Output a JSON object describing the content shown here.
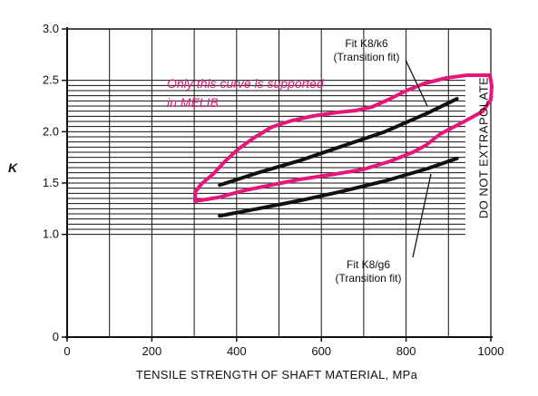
{
  "chart_data": {
    "type": "line",
    "xlabel": "TENSILE STRENGTH OF SHAFT MATERIAL, MPa",
    "ylabel": "K",
    "xlim": [
      0,
      1000
    ],
    "ylim": [
      0,
      3.0
    ],
    "x_ticks": [
      "0",
      "200",
      "400",
      "600",
      "800",
      "1000"
    ],
    "y_ticks": [
      "0",
      "1.0",
      "1.5",
      "2.0",
      "2.5",
      "3.0"
    ],
    "series": [
      {
        "name": "Fit K8/k6 (Transition fit)",
        "x": [
          360,
          450,
          550,
          650,
          750,
          850,
          920
        ],
        "y": [
          1.48,
          1.6,
          1.72,
          1.86,
          2.0,
          2.18,
          2.32
        ]
      },
      {
        "name": "Fit K8/g6 (Transition fit)",
        "x": [
          360,
          450,
          550,
          650,
          750,
          850,
          920
        ],
        "y": [
          1.18,
          1.25,
          1.33,
          1.42,
          1.52,
          1.64,
          1.74
        ]
      }
    ],
    "annotations": {
      "k6_label_line1": "Fit K8/k6",
      "k6_label_line2": "(Transition fit)",
      "g6_label_line1": "Fit K8/g6",
      "g6_label_line2": "(Transition fit)",
      "side_note": "DO NOT EXTRAPOLATE",
      "highlight_note_line1": "Only this curve is supported",
      "highlight_note_line2": "in MELIB."
    },
    "colors": {
      "curves": "#111111",
      "highlight": "#e6177a"
    }
  }
}
